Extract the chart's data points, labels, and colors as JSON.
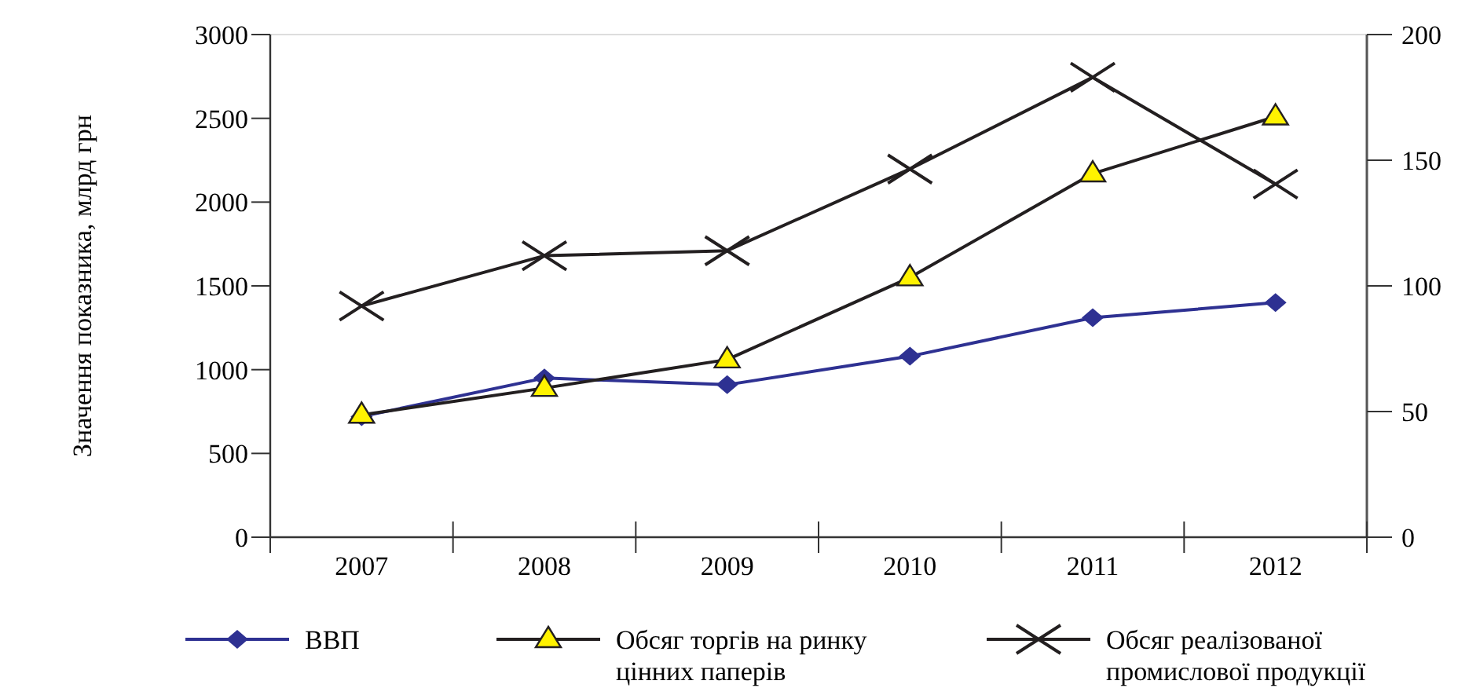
{
  "chart_data": {
    "type": "line",
    "ylabel": "Значення показника, млрд грн",
    "categories": [
      "2007",
      "2008",
      "2009",
      "2010",
      "2011",
      "2012"
    ],
    "ylim": [
      0,
      3000
    ],
    "yticks": [
      0,
      500,
      1000,
      1500,
      2000,
      2500,
      3000
    ],
    "y2lim": [
      0,
      200
    ],
    "y2ticks": [
      0,
      50,
      100,
      150,
      200
    ],
    "legend": "bottom",
    "grid": false,
    "series": [
      {
        "name": "ВВП",
        "color": "#2e3192",
        "marker": "diamond",
        "values": [
          720,
          950,
          910,
          1080,
          1310,
          1400
        ]
      },
      {
        "name": "Обсяг торгів на ринку цінних паперів",
        "color": "#231f20",
        "marker": "triangle",
        "values": [
          730,
          890,
          1060,
          1550,
          2170,
          2510
        ]
      },
      {
        "name": "Обсяг реалізованої промислової продукції",
        "color": "#231f20",
        "marker": "cross",
        "axis": "y2",
        "values": [
          92,
          112,
          114,
          146.5,
          183,
          140.5
        ]
      }
    ]
  }
}
